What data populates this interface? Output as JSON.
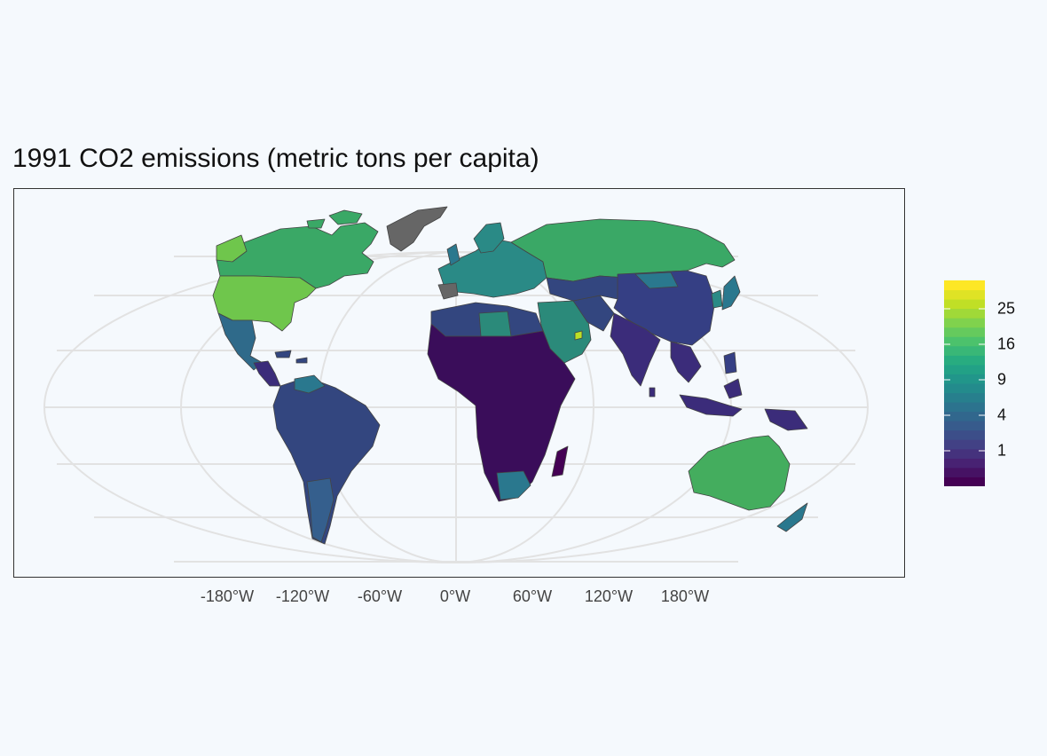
{
  "title": "1991 CO2 emissions (metric tons per capita)",
  "x_axis_ticks": [
    "-180°W",
    "-120°W",
    "-60°W",
    "0°W",
    "60°W",
    "120°W",
    "180°W"
  ],
  "legend": {
    "labels": [
      "25",
      "16",
      "9",
      "4",
      "1"
    ],
    "palette": [
      "#440154",
      "#482475",
      "#414487",
      "#355f8d",
      "#2a788e",
      "#21918c",
      "#22a884",
      "#44bf70",
      "#7ad151",
      "#bddf26",
      "#fde725"
    ]
  },
  "map": {
    "projection": "Robinson-like",
    "graticule": true,
    "no_data_color": "#666666",
    "border_color": "#444444",
    "regions": [
      {
        "name": "Canada",
        "color": "#3aa866"
      },
      {
        "name": "United States",
        "color": "#6fc64c"
      },
      {
        "name": "Greenland",
        "color": "#666666"
      },
      {
        "name": "Mexico",
        "color": "#2f6a8a"
      },
      {
        "name": "Central America",
        "color": "#3b2c7a"
      },
      {
        "name": "South America",
        "color": "#33467f"
      },
      {
        "name": "Europe",
        "color": "#2a8a86"
      },
      {
        "name": "Russia",
        "color": "#3aa866"
      },
      {
        "name": "Middle East",
        "color": "#2b8a7a"
      },
      {
        "name": "Africa",
        "color": "#3a0d5a"
      },
      {
        "name": "South Africa",
        "color": "#2a788e"
      },
      {
        "name": "Central Asia",
        "color": "#33467f"
      },
      {
        "name": "China",
        "color": "#353f84"
      },
      {
        "name": "India",
        "color": "#3b2c7a"
      },
      {
        "name": "Southeast Asia",
        "color": "#3b2c7a"
      },
      {
        "name": "Japan",
        "color": "#2a788e"
      },
      {
        "name": "Australia",
        "color": "#44ad5e"
      },
      {
        "name": "New Zealand",
        "color": "#2a788e"
      },
      {
        "name": "Madagascar",
        "color": "#440154"
      }
    ]
  }
}
